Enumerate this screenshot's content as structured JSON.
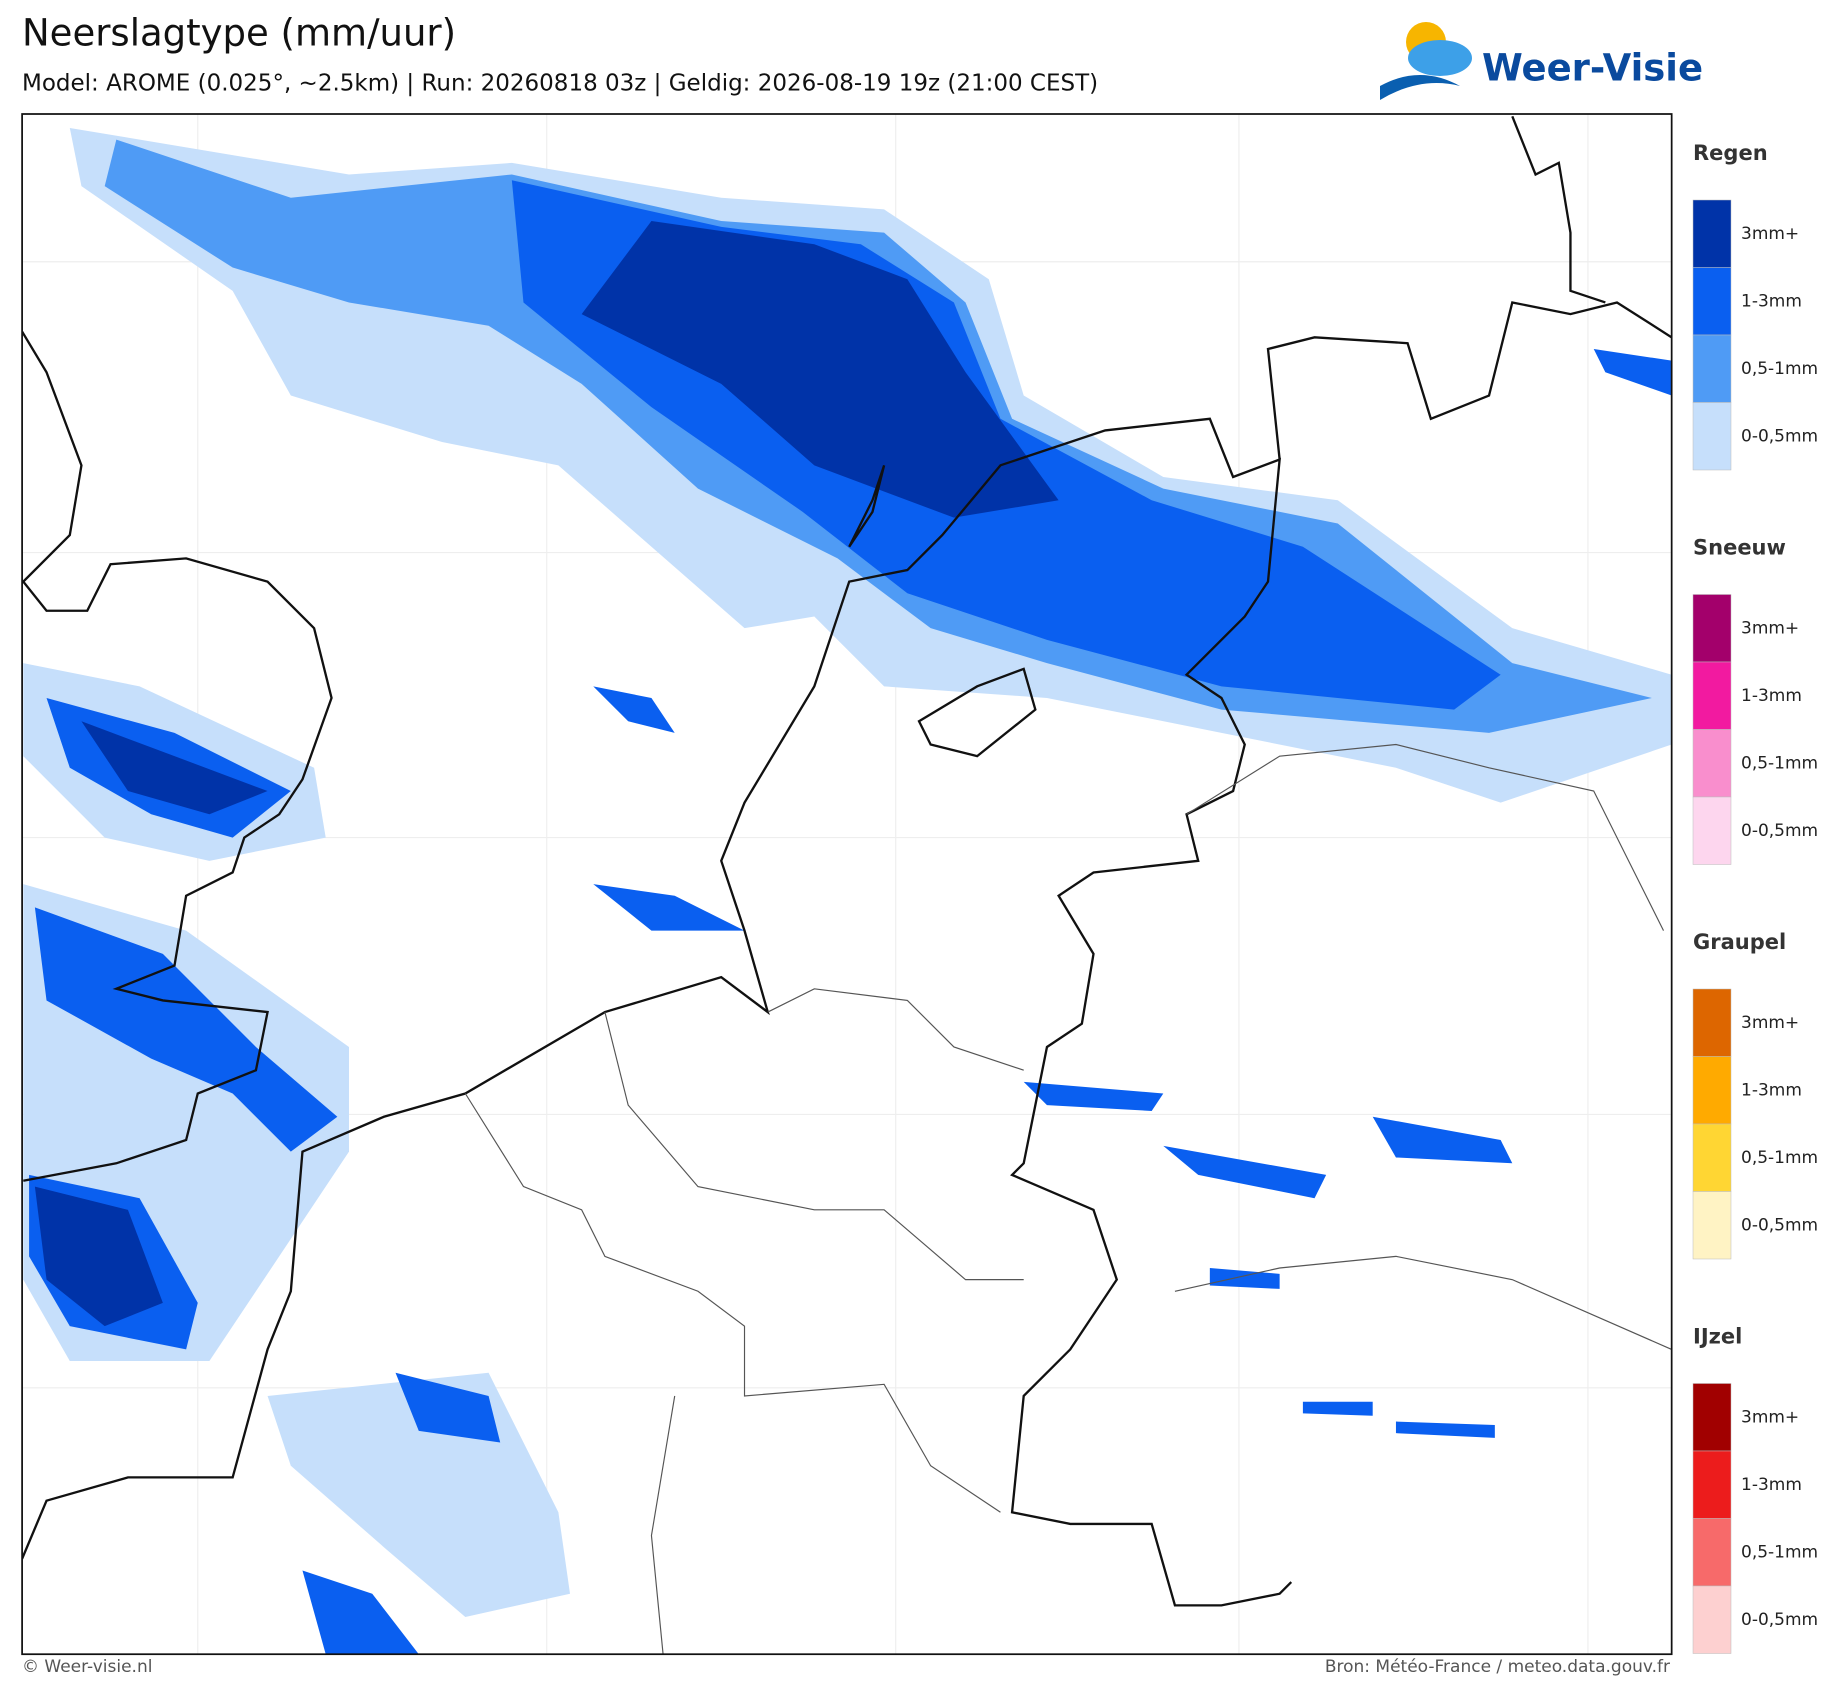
{
  "header": {
    "title": "Neerslagtype (mm/uur)",
    "subtitle": "Model: AROME (0.025°, ~2.5km)  |  Run: 20260818 03z  |  Geldig: 2026-08-19 19z (21:00 CEST)",
    "logo": "Weer-Visie"
  },
  "legend": [
    {
      "title": "Regen",
      "items": [
        {
          "label": "3mm+",
          "color": "#0033a8"
        },
        {
          "label": "1-3mm",
          "color": "#0a5ff0"
        },
        {
          "label": "0,5-1mm",
          "color": "#4f9bf5"
        },
        {
          "label": "0-0,5mm",
          "color": "#c6dffb"
        }
      ]
    },
    {
      "title": "Sneeuw",
      "items": [
        {
          "label": "3mm+",
          "color": "#a3006b"
        },
        {
          "label": "1-3mm",
          "color": "#f21aa0"
        },
        {
          "label": "0,5-1mm",
          "color": "#f98ecd"
        },
        {
          "label": "0-0,5mm",
          "color": "#fdd6ee"
        }
      ]
    },
    {
      "title": "Graupel",
      "items": [
        {
          "label": "3mm+",
          "color": "#dd6600"
        },
        {
          "label": "1-3mm",
          "color": "#ffaa00"
        },
        {
          "label": "0,5-1mm",
          "color": "#ffd633"
        },
        {
          "label": "0-0,5mm",
          "color": "#fff3c4"
        }
      ]
    },
    {
      "title": "IJzel",
      "items": [
        {
          "label": "3mm+",
          "color": "#a10000"
        },
        {
          "label": "1-3mm",
          "color": "#ec1c1c"
        },
        {
          "label": "0,5-1mm",
          "color": "#f76a6a"
        },
        {
          "label": "0-0,5mm",
          "color": "#fdd0d0"
        }
      ]
    }
  ],
  "footer": {
    "left": "© Weer-visie.nl",
    "right": "Bron: Météo-France / meteo.data.gouv.fr"
  }
}
